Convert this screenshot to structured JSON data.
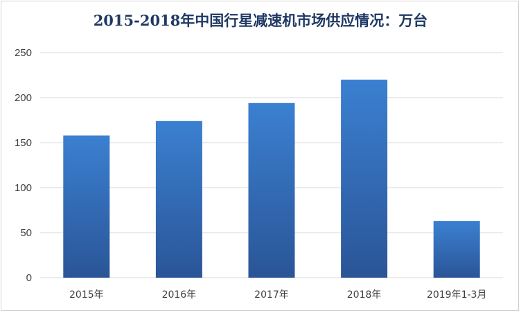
{
  "chart_data": {
    "type": "bar",
    "title": "2015-2018年中国行星减速机市场供应情况：万台",
    "categories": [
      "2015年",
      "2016年",
      "2017年",
      "2018年",
      "2019年1-3月"
    ],
    "values": [
      158,
      174,
      194,
      220,
      63
    ],
    "xlabel": "",
    "ylabel": "",
    "ylim": [
      0,
      250
    ],
    "yticks": [
      0,
      50,
      100,
      150,
      200,
      250
    ],
    "grid": true,
    "legend": "none",
    "colors": {
      "bar_top": "#3b80d1",
      "bar_bottom": "#2a5597",
      "grid": "#d9d9d9",
      "title": "#1f3864"
    }
  }
}
